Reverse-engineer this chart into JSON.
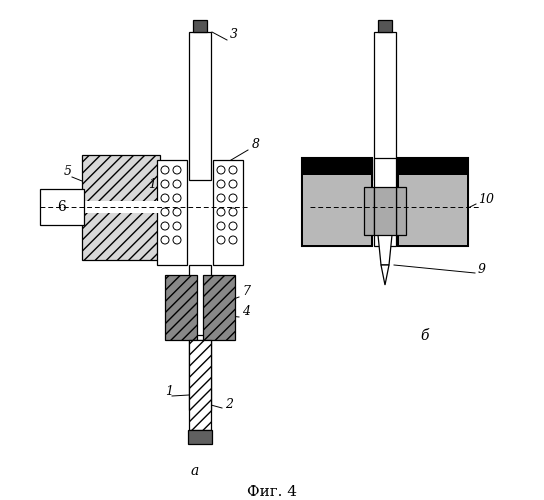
{
  "bg_color": "#ffffff",
  "lc": "#000000",
  "title": "Фиг. 4",
  "label_a": "а",
  "label_b": "б"
}
